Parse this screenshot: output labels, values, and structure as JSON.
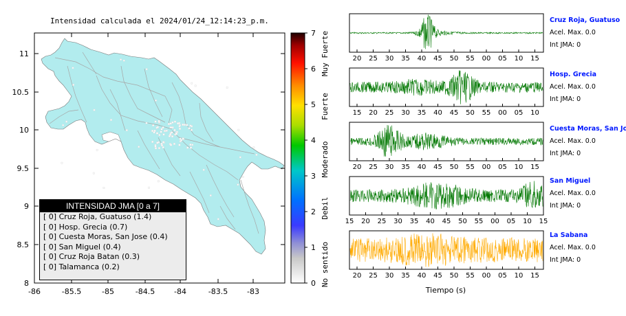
{
  "map": {
    "title": "Intensidad calculada el 2024/01/24_12:14:23_p.m.",
    "x_ticks": [
      "-86",
      "-85.5",
      "-85",
      "-84.5",
      "-84",
      "-83.5",
      "-83"
    ],
    "y_ticks": [
      "11",
      "10.5",
      "10",
      "9.5",
      "9",
      "8.5",
      "8"
    ],
    "land_color": "#b2ecee",
    "sea_color": "#ffffff"
  },
  "colorbar": {
    "ticks": [
      "0",
      "1",
      "2",
      "3",
      "4",
      "5",
      "6",
      "7"
    ],
    "category_labels": [
      "No sentido",
      "Debil",
      "Moderado",
      "Fuerte",
      "Muy Fuerte"
    ]
  },
  "legend": {
    "title": "INTENSIDAD JMA [0 a 7]",
    "rows": [
      "[ 0]  Cruz Roja, Guatuso (1.4)",
      "[ 0]  Hosp. Grecia (0.7)",
      "[ 0]  Cuesta Moras, San Jose (0.4)",
      "[ 0]  San Miguel (0.4)",
      "[ 0]  Cruz Roja Batan (0.3)",
      "[ 0]  Talamanca (0.2)"
    ]
  },
  "waveforms": {
    "xlabel": "Tiempo (s)",
    "stations": [
      {
        "name": "Cruz Roja, Guatuso",
        "acel": "Acel. Max. 0.0",
        "int": "Int JMA: 0",
        "color": "#007700",
        "ticks": [
          "20",
          "25",
          "30",
          "35",
          "40",
          "45",
          "50",
          "55",
          "00",
          "05",
          "10",
          "15"
        ]
      },
      {
        "name": "Hosp. Grecia",
        "acel": "Acel. Max. 0.0",
        "int": "Int JMA: 0",
        "color": "#007700",
        "ticks": [
          "15",
          "20",
          "25",
          "30",
          "35",
          "40",
          "45",
          "50",
          "55",
          "00",
          "05",
          "10"
        ]
      },
      {
        "name": "Cuesta Moras, San Jose",
        "acel": "Acel. Max. 0.0",
        "int": "Int JMA: 0",
        "color": "#007700",
        "ticks": [
          "20",
          "25",
          "30",
          "35",
          "40",
          "45",
          "50",
          "55",
          "00",
          "05",
          "10",
          "15"
        ]
      },
      {
        "name": "San Miguel",
        "acel": "Acel. Max. 0.0",
        "int": "Int JMA: 0",
        "color": "#007700",
        "ticks": [
          "15",
          "20",
          "25",
          "30",
          "35",
          "40",
          "45",
          "50",
          "55",
          "00",
          "05",
          "10",
          "15"
        ]
      },
      {
        "name": "La Sabana",
        "acel": "Acel. Max. 0.0",
        "int": "Int JMA: 0",
        "color": "#ffaa00",
        "ticks": [
          "20",
          "25",
          "30",
          "35",
          "40",
          "45",
          "50",
          "55",
          "00",
          "05",
          "10",
          "15"
        ]
      }
    ]
  },
  "chart_data": [
    {
      "type": "map",
      "title": "Intensidad calculada el 2024/01/24_12:14:23_p.m.",
      "xlim": [
        -86,
        -82.5
      ],
      "ylim": [
        8,
        11.3
      ],
      "legend": "bottom-left"
    },
    {
      "type": "colorbar",
      "range": [
        0,
        7
      ],
      "categories": [
        "No sentido",
        "Debil",
        "Moderado",
        "Fuerte",
        "Muy Fuerte"
      ]
    },
    {
      "type": "line",
      "xlabel": "Tiempo (s)",
      "series": [
        {
          "name": "Cruz Roja, Guatuso",
          "acel_max": 0.0,
          "int_jma": 0
        },
        {
          "name": "Hosp. Grecia",
          "acel_max": 0.0,
          "int_jma": 0
        },
        {
          "name": "Cuesta Moras, San Jose",
          "acel_max": 0.0,
          "int_jma": 0
        },
        {
          "name": "San Miguel",
          "acel_max": 0.0,
          "int_jma": 0
        },
        {
          "name": "La Sabana",
          "acel_max": 0.0,
          "int_jma": 0
        }
      ]
    }
  ]
}
